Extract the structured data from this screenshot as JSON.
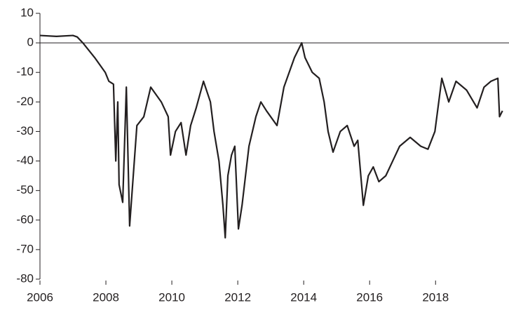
{
  "chart_data": {
    "type": "line",
    "x": [
      2006.0,
      2006.5,
      2007.0,
      2007.13,
      2007.3,
      2007.66,
      2007.98,
      2008.09,
      2008.23,
      2008.3,
      2008.36,
      2008.4,
      2008.51,
      2008.62,
      2008.72,
      2008.83,
      2008.94,
      2009.15,
      2009.36,
      2009.68,
      2009.89,
      2009.96,
      2010.11,
      2010.28,
      2010.43,
      2010.57,
      2010.74,
      2010.96,
      2011.17,
      2011.28,
      2011.43,
      2011.55,
      2011.62,
      2011.7,
      2011.81,
      2011.91,
      2012.02,
      2012.13,
      2012.34,
      2012.55,
      2012.7,
      2012.87,
      2013.19,
      2013.4,
      2013.72,
      2013.94,
      2014.04,
      2014.26,
      2014.47,
      2014.62,
      2014.74,
      2014.89,
      2015.11,
      2015.32,
      2015.53,
      2015.64,
      2015.81,
      2015.96,
      2016.11,
      2016.28,
      2016.49,
      2016.7,
      2016.91,
      2017.23,
      2017.55,
      2017.77,
      2017.98,
      2018.19,
      2018.4,
      2018.62,
      2018.94,
      2019.26,
      2019.47,
      2019.68,
      2019.89,
      2019.94,
      2020.03
    ],
    "series": [
      {
        "color": "#231f20",
        "values": [
          2.5,
          2.2,
          2.5,
          2,
          0,
          -5,
          -10,
          -13,
          -14,
          -40,
          -20,
          -48,
          -54,
          -15,
          -62,
          -45,
          -28,
          -25,
          -15,
          -20,
          -25,
          -38,
          -30,
          -27,
          -38,
          -28,
          -22,
          -13,
          -20,
          -30,
          -40,
          -55,
          -66,
          -45,
          -38,
          -35,
          -63,
          -55,
          -35,
          -25,
          -20,
          -23,
          -28,
          -15,
          -5,
          0,
          -5,
          -10,
          -12,
          -20,
          -30,
          -37,
          -30,
          -28,
          -35,
          -33,
          -55,
          -45,
          -42,
          -47,
          -45,
          -40,
          -35,
          -32,
          -35,
          -36,
          -30,
          -12,
          -20,
          -13,
          -16,
          -22,
          -15,
          -13,
          -12,
          -25,
          -23
        ]
      }
    ],
    "xlim": [
      2006,
      2020.1
    ],
    "xticks": [
      2006,
      2008,
      2010,
      2012,
      2014,
      2016,
      2018
    ],
    "ylim": [
      -80,
      10
    ],
    "yticks": [
      10,
      0,
      -10,
      -20,
      -30,
      -40,
      -50,
      -60,
      -70,
      -80
    ]
  }
}
